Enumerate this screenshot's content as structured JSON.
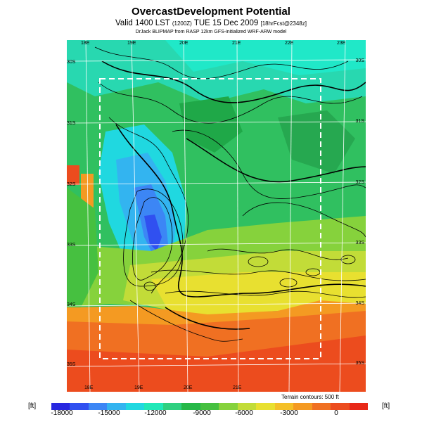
{
  "header": {
    "title": "OvercastDevelopment Potential",
    "subtitle_main": "Valid 1400 LST",
    "subtitle_z": "(1200Z)",
    "subtitle_date": "TUE 15 Dec 2009",
    "subtitle_fcst": "[18hrFcst@2348z]",
    "credit": "DrJack BLIPMAP from RASP 12km GFS-initialized WRF-ARW model"
  },
  "map": {
    "lon_labels_top": [
      "18E",
      "19E",
      "20E",
      "21E",
      "22E",
      "23E"
    ],
    "lon_labels_bottom": [
      "18E",
      "19E",
      "20E",
      "21E"
    ],
    "lat_labels_left": [
      "30S",
      "31S",
      "32S",
      "33S",
      "34S",
      "35S"
    ],
    "lat_labels_right": [
      "30S",
      "31S",
      "32S",
      "33S",
      "34S",
      "35S"
    ],
    "contour_note": "Terrain contours: 500 ft"
  },
  "legend": {
    "unit_left": "[ft]",
    "unit_right": "[ft]",
    "ticks": [
      "-18000",
      "-15000",
      "-12000",
      "-9000",
      "-6000",
      "-3000",
      "0"
    ],
    "colors": [
      "#2828e0",
      "#3050f0",
      "#3c86f5",
      "#33b4f0",
      "#20d8e0",
      "#20e8b8",
      "#2fd080",
      "#26b848",
      "#46c040",
      "#86d23c",
      "#c2dc38",
      "#e8e030",
      "#f4c028",
      "#f49a22",
      "#f07022",
      "#ec4c1e",
      "#e82818"
    ]
  }
}
